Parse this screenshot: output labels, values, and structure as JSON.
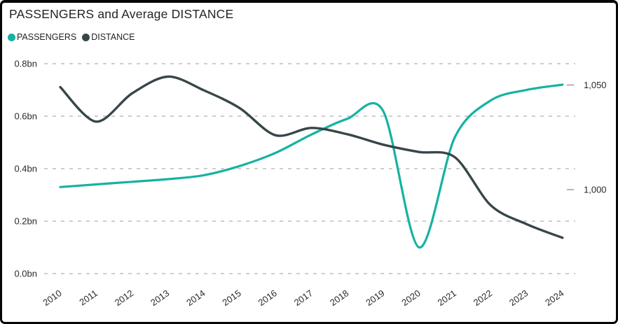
{
  "window": {
    "background": "#ffffff",
    "border_color": "#060606"
  },
  "header": {
    "title": "PASSENGERS and Average DISTANCE"
  },
  "legend": {
    "position": "top-left",
    "items": [
      {
        "label": "PASSENGERS",
        "color": "#16b2a2"
      },
      {
        "label": "DISTANCE",
        "color": "#374649"
      }
    ]
  },
  "chart_data": {
    "type": "line",
    "title": "PASSENGERS and Average DISTANCE",
    "x": [
      2010,
      2011,
      2012,
      2013,
      2014,
      2015,
      2016,
      2017,
      2018,
      2019,
      2020,
      2021,
      2022,
      2023,
      2024
    ],
    "series": [
      {
        "name": "PASSENGERS",
        "axis": "left",
        "unit": "bn",
        "color": "#16b2a2",
        "values": [
          0.33,
          0.34,
          0.35,
          0.36,
          0.375,
          0.41,
          0.46,
          0.53,
          0.59,
          0.62,
          0.1,
          0.52,
          0.66,
          0.7,
          0.72
        ]
      },
      {
        "name": "DISTANCE",
        "axis": "right",
        "color": "#374649",
        "values": [
          1049,
          1032.5,
          1046,
          1054,
          1047.5,
          1039,
          1026,
          1029.5,
          1026.5,
          1021.5,
          1018,
          1015.5,
          992.5,
          983.5,
          977
        ]
      }
    ],
    "left_axis": {
      "ticks": [
        0,
        0.2,
        0.4,
        0.6,
        0.8
      ],
      "tick_labels": [
        "0.0bn",
        "0.2bn",
        "0.4bn",
        "0.6bn",
        "0.8bn"
      ],
      "range": [
        0,
        0.8
      ]
    },
    "right_axis": {
      "ticks": [
        1000,
        1050
      ],
      "tick_labels": [
        "1,000",
        "1,050"
      ]
    },
    "x_axis": {
      "tick_labels": [
        "2010",
        "2011",
        "2012",
        "2013",
        "2014",
        "2015",
        "2016",
        "2017",
        "2018",
        "2019",
        "2020",
        "2021",
        "2022",
        "2023",
        "2024"
      ],
      "label_rotation_deg": -35
    },
    "grid": {
      "horizontal": true,
      "style": "dashed",
      "color": "#b1b1b1"
    },
    "line_style": "smooth"
  }
}
